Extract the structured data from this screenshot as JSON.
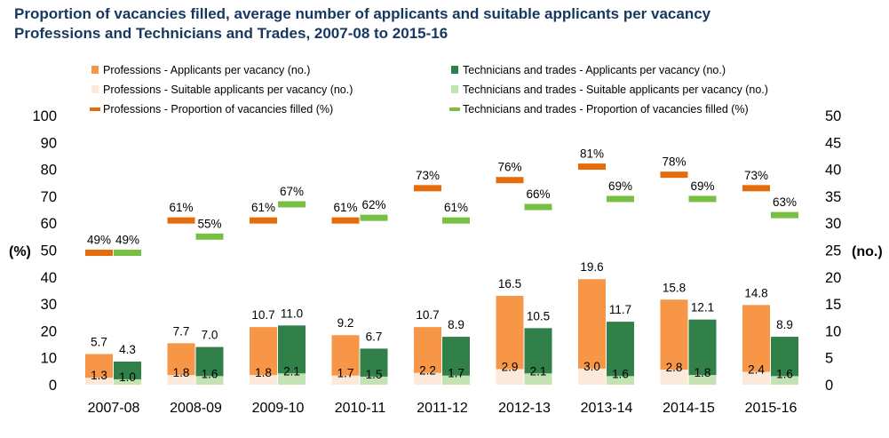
{
  "chart_data": {
    "type": "bar",
    "title": "Proportion of vacancies filled, average number of applicants and suitable applicants per vacancy",
    "subtitle": "Professions and Technicians and Trades, 2007-08 to 2015-16",
    "categories": [
      "2007-08",
      "2008-09",
      "2009-10",
      "2010-11",
      "2011-12",
      "2012-13",
      "2013-14",
      "2014-15",
      "2015-16"
    ],
    "ylabel_left": "(%)",
    "ylabel_right": "(no.)",
    "ylim_left": [
      0,
      100
    ],
    "ylim_right": [
      0,
      50
    ],
    "yticks_left": [
      "0",
      "10",
      "20",
      "30",
      "40",
      "50",
      "60",
      "70",
      "80",
      "90",
      "100"
    ],
    "yticks_right": [
      "0",
      "5",
      "10",
      "15",
      "20",
      "25",
      "30",
      "35",
      "40",
      "45",
      "50"
    ],
    "legend_position": "top",
    "series": [
      {
        "name": "Professions -  Applicants per vacancy (no.)",
        "kind": "bar",
        "group": "professions",
        "layer": "back",
        "axis": "right",
        "color": "#f79646",
        "values": [
          5.7,
          7.7,
          10.7,
          9.2,
          10.7,
          16.5,
          19.6,
          15.8,
          14.8
        ],
        "labels": [
          "5.7",
          "7.7",
          "10.7",
          "9.2",
          "10.7",
          "16.5",
          "19.6",
          "15.8",
          "14.8"
        ]
      },
      {
        "name": "Technicians and trades -  Applicants per vacancy (no.)",
        "kind": "bar",
        "group": "trades",
        "layer": "back",
        "axis": "right",
        "color": "#31804a",
        "values": [
          4.3,
          7.0,
          11.0,
          6.7,
          8.9,
          10.5,
          11.7,
          12.1,
          8.9
        ],
        "labels": [
          "4.3",
          "7.0",
          "11.0",
          "6.7",
          "8.9",
          "10.5",
          "11.7",
          "12.1",
          "8.9"
        ]
      },
      {
        "name": "Professions -  Suitable applicants per vacancy (no.)",
        "kind": "bar",
        "group": "professions",
        "layer": "front",
        "axis": "right",
        "color": "#fde9d9",
        "values": [
          1.3,
          1.8,
          1.8,
          1.7,
          2.2,
          2.9,
          3.0,
          2.8,
          2.4
        ],
        "labels": [
          "1.3",
          "1.8",
          "1.8",
          "1.7",
          "2.2",
          "2.9",
          "3.0",
          "2.8",
          "2.4"
        ]
      },
      {
        "name": "Technicians and trades -  Suitable applicants per vacancy (no.)",
        "kind": "bar",
        "group": "trades",
        "layer": "front",
        "axis": "right",
        "color": "#c4e3b3",
        "values": [
          1.0,
          1.6,
          2.1,
          1.5,
          1.7,
          2.1,
          1.6,
          1.8,
          1.6
        ],
        "labels": [
          "1.0",
          "1.6",
          "2.1",
          "1.5",
          "1.7",
          "2.1",
          "1.6",
          "1.8",
          "1.6"
        ]
      },
      {
        "name": "Professions -  Proportion of vacancies filled (%)",
        "kind": "marker",
        "group": "professions",
        "axis": "left",
        "color": "#e46c0a",
        "values": [
          49,
          61,
          61,
          61,
          73,
          76,
          81,
          78,
          73
        ],
        "labels": [
          "49%",
          "61%",
          "61%",
          "61%",
          "73%",
          "76%",
          "81%",
          "78%",
          "73%"
        ]
      },
      {
        "name": "Technicians and trades -  Proportion of vacancies filled (%)",
        "kind": "marker",
        "group": "trades",
        "axis": "left",
        "color": "#77c043",
        "values": [
          49,
          55,
          67,
          62,
          61,
          66,
          69,
          69,
          63
        ],
        "labels": [
          "49%",
          "55%",
          "67%",
          "62%",
          "61%",
          "66%",
          "69%",
          "69%",
          "63%"
        ]
      }
    ],
    "legend_order": [
      0,
      1,
      2,
      3,
      4,
      5
    ]
  }
}
